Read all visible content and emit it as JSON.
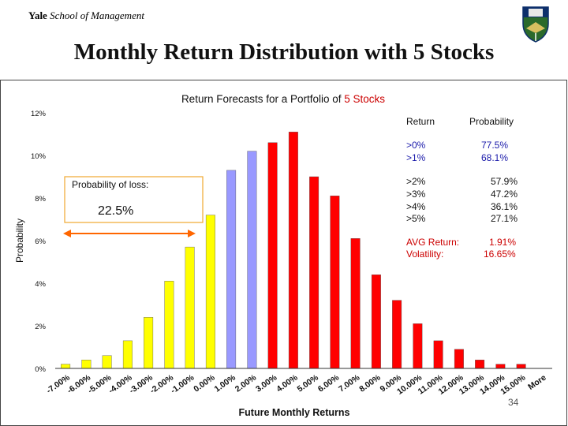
{
  "header": {
    "school_bold": "Yale",
    "school_rest": " School of Management",
    "slide_title": "Monthly Return Distribution with 5 Stocks"
  },
  "page_number": "34",
  "colors": {
    "loss_bars": "#ffff00",
    "near_zero_bars": "#9999ff",
    "gain_bars": "#ff0000",
    "title_accent": "#cc0000",
    "prob_blue": "#1a1aaa",
    "annotation_orange": "#ff6600",
    "background": "#ffffff"
  },
  "chart_data": {
    "type": "bar",
    "title_prefix": "Return Forecasts for a Portfolio of ",
    "title_highlight": "5 Stocks",
    "xlabel": "Future Monthly Returns",
    "ylabel": "Probability",
    "ylim": [
      0,
      12
    ],
    "yticks": [
      "0%",
      "2%",
      "4%",
      "6%",
      "8%",
      "10%",
      "12%"
    ],
    "grid": false,
    "categories": [
      "-7.00%",
      "-6.00%",
      "-5.00%",
      "-4.00%",
      "-3.00%",
      "-2.00%",
      "-1.00%",
      "0.00%",
      "1.00%",
      "2.00%",
      "3.00%",
      "4.00%",
      "5.00%",
      "6.00%",
      "7.00%",
      "8.00%",
      "9.00%",
      "10.00%",
      "11.00%",
      "12.00%",
      "13.00%",
      "14.00%",
      "15.00%",
      "More"
    ],
    "values": [
      0.2,
      0.4,
      0.6,
      1.3,
      2.4,
      4.1,
      5.7,
      7.2,
      9.3,
      10.2,
      10.6,
      11.1,
      9.0,
      8.1,
      6.1,
      4.4,
      3.2,
      2.1,
      1.3,
      0.9,
      0.4,
      0.2,
      0.2,
      0
    ],
    "bar_colors": [
      "yellow",
      "yellow",
      "yellow",
      "yellow",
      "yellow",
      "yellow",
      "yellow",
      "yellow",
      "blue",
      "blue",
      "red",
      "red",
      "red",
      "red",
      "red",
      "red",
      "red",
      "red",
      "red",
      "red",
      "red",
      "red",
      "red",
      "red"
    ],
    "loss_box": {
      "label": "Probability of loss:",
      "value": "22.5%"
    },
    "table": {
      "header_return": "Return",
      "header_probability": "Probability",
      "group1": [
        {
          "ret": ">0%",
          "prob": "77.5%"
        },
        {
          "ret": ">1%",
          "prob": "68.1%"
        }
      ],
      "group2": [
        {
          "ret": ">2%",
          "prob": "57.9%"
        },
        {
          "ret": ">3%",
          "prob": "47.2%"
        },
        {
          "ret": ">4%",
          "prob": "36.1%"
        },
        {
          "ret": ">5%",
          "prob": "27.1%"
        }
      ],
      "avg_label": "AVG Return:",
      "avg_value": "1.91%",
      "vol_label": "Volatility:",
      "vol_value": "16.65%"
    }
  }
}
